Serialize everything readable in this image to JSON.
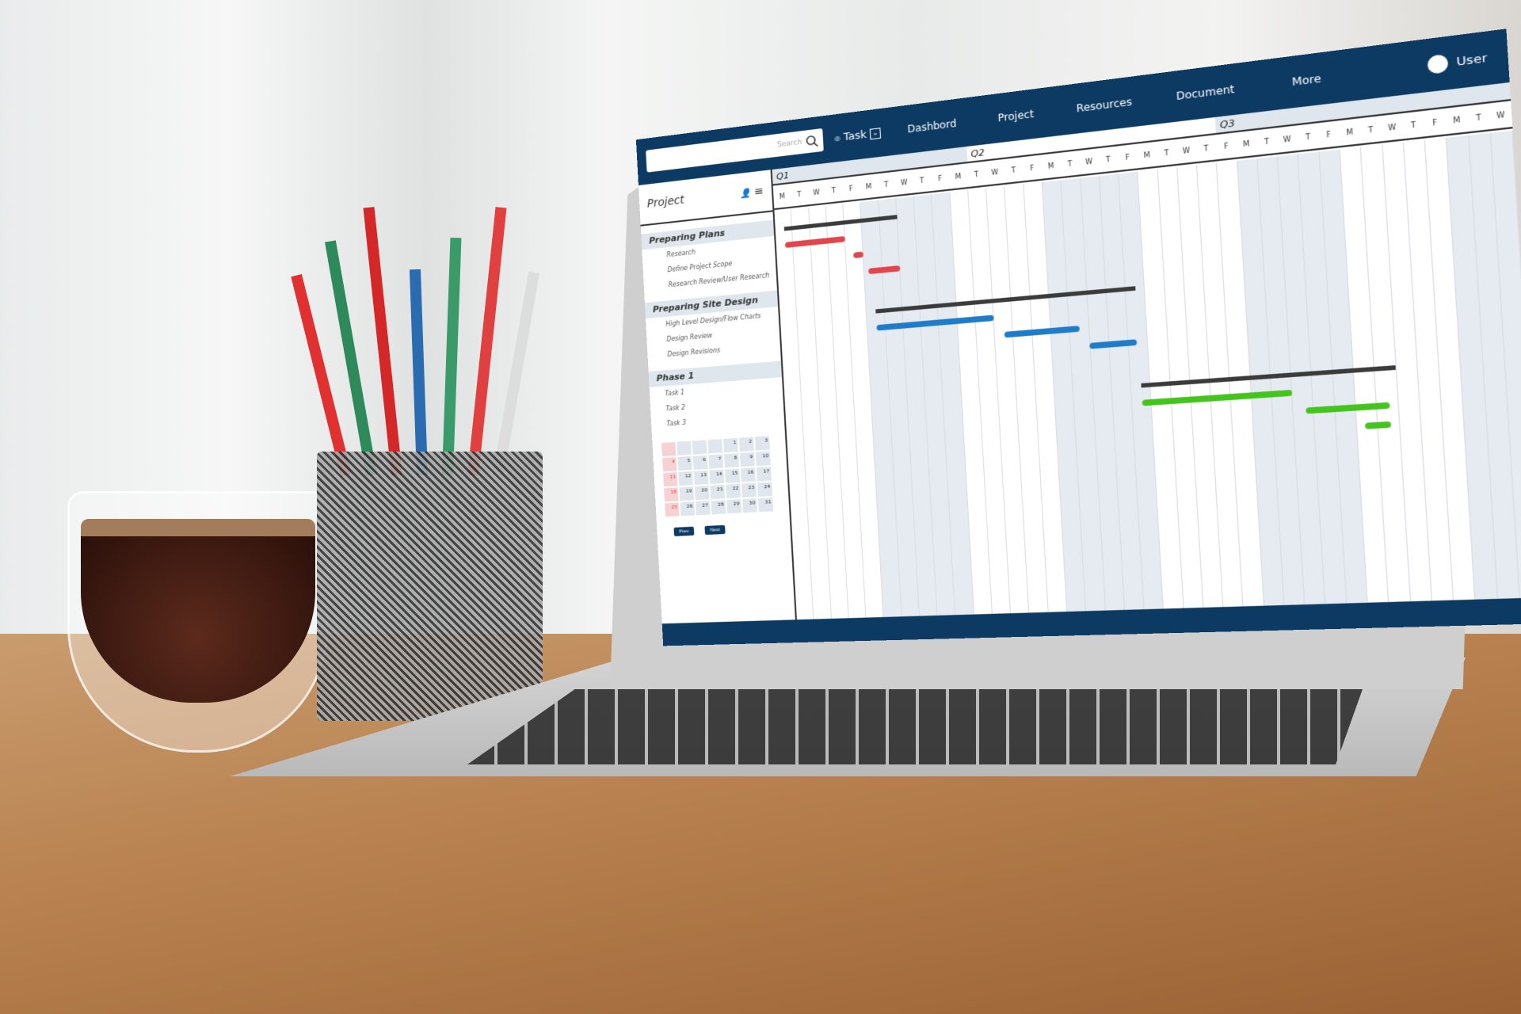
{
  "topbar": {
    "search_placeholder": "Search",
    "task_label": "Task",
    "nav": [
      "Dashbord",
      "Project",
      "Resources",
      "Document",
      "More"
    ],
    "user_label": "User"
  },
  "sidebar": {
    "title": "Project",
    "groups": [
      {
        "label": "Preparing Plans",
        "items": [
          "Research",
          "Define Project Scope",
          "Research Review/User Research"
        ]
      },
      {
        "label": "Preparing Site Design",
        "items": [
          "High Level Design/Flow Charts",
          "Design Review",
          "Design Revisions"
        ]
      },
      {
        "label": "Phase 1",
        "items": [
          "Task 1",
          "Task 2",
          "Task 3"
        ]
      }
    ]
  },
  "calendar": {
    "leading_blanks": 4,
    "days": 31,
    "prev_label": "Prev",
    "next_label": "Next"
  },
  "timeline": {
    "quarters": [
      {
        "label": "Q1",
        "columns": 11
      },
      {
        "label": "Q2",
        "columns": 13
      },
      {
        "label": "Q3",
        "columns": 14
      }
    ],
    "day_letters": [
      "M",
      "T",
      "W",
      "T",
      "F"
    ],
    "total_columns": 38
  },
  "gantt": {
    "colors": {
      "Preparing Plans": "#e0474c",
      "Preparing Site Design": "#1f7cc9",
      "Phase 1": "#46c41e",
      "summary": "#3b3b3b",
      "accent": "#0c3a63"
    },
    "tasks": [
      {
        "group": "Preparing Plans",
        "summary": [
          0.5,
          7
        ]
      },
      {
        "group": "Preparing Plans",
        "name": "Research",
        "span": [
          0.5,
          4
        ]
      },
      {
        "group": "Preparing Plans",
        "name": "Define Project Scope",
        "span": [
          4.4,
          5
        ]
      },
      {
        "group": "Preparing Plans",
        "name": "Research Review/User Research",
        "span": [
          5.2,
          7
        ]
      },
      {
        "group": "Preparing Site Design",
        "summary": [
          5.5,
          19.5
        ]
      },
      {
        "group": "Preparing Site Design",
        "name": "High Level Design/Flow Charts",
        "span": [
          5.5,
          12
        ]
      },
      {
        "group": "Preparing Site Design",
        "name": "Design Review",
        "span": [
          12.5,
          16.5
        ]
      },
      {
        "group": "Preparing Site Design",
        "name": "Design Revisions",
        "span": [
          17,
          19.4
        ]
      },
      {
        "group": "Phase 1",
        "summary": [
          19.5,
          32
        ]
      },
      {
        "group": "Phase 1",
        "name": "Task 1",
        "span": [
          19.5,
          27
        ]
      },
      {
        "group": "Phase 1",
        "name": "Task 2",
        "span": [
          27.6,
          31.6
        ]
      },
      {
        "group": "Phase 1",
        "name": "Task 3",
        "span": [
          30.4,
          31.6
        ]
      }
    ]
  }
}
